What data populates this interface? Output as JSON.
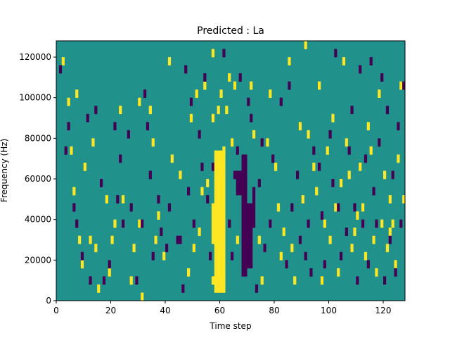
{
  "chart_data": {
    "type": "heatmap",
    "title": "Predicted : La",
    "xlabel": "Time step",
    "ylabel": "Frequency (Hz)",
    "xlim": [
      0,
      128
    ],
    "ylim": [
      0,
      128000
    ],
    "x_ticks": [
      0,
      20,
      40,
      60,
      80,
      100,
      120
    ],
    "y_ticks": [
      0,
      20000,
      40000,
      60000,
      80000,
      100000,
      120000
    ],
    "grid": false,
    "colormap": "viridis",
    "colors": {
      "background": "#21918c",
      "high": "#fde725",
      "low": "#440154"
    },
    "cell_width_steps": 1,
    "cell_height_hz": 4000,
    "regions": [
      {
        "level": "high",
        "x": [
          58,
          62
        ],
        "y": [
          4000,
          74000
        ]
      },
      {
        "level": "high",
        "x": [
          57,
          58
        ],
        "y": [
          8000,
          12000
        ]
      },
      {
        "level": "high",
        "x": [
          57,
          58
        ],
        "y": [
          28000,
          48000
        ]
      },
      {
        "level": "low",
        "x": [
          68,
          70
        ],
        "y": [
          12000,
          72000
        ]
      },
      {
        "level": "low",
        "x": [
          70,
          72
        ],
        "y": [
          16000,
          48000
        ]
      },
      {
        "level": "low",
        "x": [
          72,
          73
        ],
        "y": [
          36000,
          56000
        ]
      },
      {
        "level": "low",
        "x": [
          66,
          68
        ],
        "y": [
          52000,
          64000
        ]
      }
    ],
    "high_cells": [
      [
        2,
        116000
      ],
      [
        4,
        96000
      ],
      [
        5,
        72000
      ],
      [
        6,
        52000
      ],
      [
        7,
        100000
      ],
      [
        8,
        28000
      ],
      [
        9,
        16000
      ],
      [
        10,
        64000
      ],
      [
        12,
        28000
      ],
      [
        13,
        76000
      ],
      [
        14,
        24000
      ],
      [
        15,
        4000
      ],
      [
        18,
        48000
      ],
      [
        19,
        12000
      ],
      [
        20,
        28000
      ],
      [
        21,
        36000
      ],
      [
        23,
        92000
      ],
      [
        24,
        48000
      ],
      [
        27,
        8000
      ],
      [
        28,
        24000
      ],
      [
        30,
        36000
      ],
      [
        31,
        0
      ],
      [
        34,
        92000
      ],
      [
        36,
        28000
      ],
      [
        37,
        40000
      ],
      [
        39,
        20000
      ],
      [
        42,
        68000
      ],
      [
        45,
        60000
      ],
      [
        48,
        12000
      ],
      [
        49,
        88000
      ],
      [
        50,
        24000
      ],
      [
        51,
        100000
      ],
      [
        52,
        32000
      ],
      [
        53,
        52000
      ],
      [
        54,
        104000
      ],
      [
        55,
        56000
      ],
      [
        57,
        120000
      ],
      [
        57,
        88000
      ],
      [
        59,
        92000
      ],
      [
        60,
        100000
      ],
      [
        61,
        72000
      ],
      [
        62,
        92000
      ],
      [
        63,
        108000
      ],
      [
        64,
        76000
      ],
      [
        65,
        104000
      ],
      [
        66,
        28000
      ],
      [
        67,
        52000
      ],
      [
        68,
        64000
      ],
      [
        70,
        40000
      ],
      [
        71,
        104000
      ],
      [
        72,
        80000
      ],
      [
        74,
        28000
      ],
      [
        75,
        8000
      ],
      [
        77,
        76000
      ],
      [
        78,
        100000
      ],
      [
        80,
        64000
      ],
      [
        81,
        44000
      ],
      [
        82,
        20000
      ],
      [
        83,
        32000
      ],
      [
        85,
        116000
      ],
      [
        86,
        24000
      ],
      [
        87,
        8000
      ],
      [
        89,
        84000
      ],
      [
        90,
        48000
      ],
      [
        91,
        124000
      ],
      [
        92,
        80000
      ],
      [
        94,
        64000
      ],
      [
        95,
        52000
      ],
      [
        96,
        104000
      ],
      [
        97,
        8000
      ],
      [
        98,
        36000
      ],
      [
        99,
        72000
      ],
      [
        100,
        28000
      ],
      [
        101,
        88000
      ],
      [
        102,
        44000
      ],
      [
        103,
        12000
      ],
      [
        104,
        56000
      ],
      [
        105,
        116000
      ],
      [
        106,
        76000
      ],
      [
        107,
        60000
      ],
      [
        108,
        24000
      ],
      [
        109,
        32000
      ],
      [
        110,
        40000
      ],
      [
        111,
        64000
      ],
      [
        112,
        44000
      ],
      [
        113,
        20000
      ],
      [
        114,
        84000
      ],
      [
        115,
        72000
      ],
      [
        116,
        28000
      ],
      [
        117,
        12000
      ],
      [
        118,
        100000
      ],
      [
        119,
        36000
      ],
      [
        120,
        60000
      ],
      [
        121,
        24000
      ],
      [
        122,
        48000
      ],
      [
        124,
        16000
      ],
      [
        125,
        68000
      ],
      [
        126,
        104000
      ],
      [
        127,
        48000
      ],
      [
        122,
        32000
      ],
      [
        123,
        36000
      ],
      [
        30,
        96000
      ],
      [
        35,
        76000
      ],
      [
        41,
        116000
      ]
    ],
    "low_cells": [
      [
        1,
        112000
      ],
      [
        3,
        72000
      ],
      [
        4,
        84000
      ],
      [
        6,
        44000
      ],
      [
        7,
        36000
      ],
      [
        9,
        20000
      ],
      [
        11,
        88000
      ],
      [
        12,
        8000
      ],
      [
        14,
        92000
      ],
      [
        16,
        56000
      ],
      [
        17,
        8000
      ],
      [
        19,
        16000
      ],
      [
        21,
        84000
      ],
      [
        22,
        48000
      ],
      [
        23,
        68000
      ],
      [
        24,
        36000
      ],
      [
        26,
        80000
      ],
      [
        27,
        44000
      ],
      [
        29,
        8000
      ],
      [
        31,
        36000
      ],
      [
        32,
        100000
      ],
      [
        33,
        84000
      ],
      [
        34,
        60000
      ],
      [
        35,
        20000
      ],
      [
        37,
        48000
      ],
      [
        38,
        32000
      ],
      [
        40,
        24000
      ],
      [
        41,
        44000
      ],
      [
        44,
        28000
      ],
      [
        46,
        4000
      ],
      [
        48,
        52000
      ],
      [
        49,
        96000
      ],
      [
        50,
        36000
      ],
      [
        52,
        80000
      ],
      [
        53,
        64000
      ],
      [
        54,
        108000
      ],
      [
        55,
        48000
      ],
      [
        56,
        20000
      ],
      [
        63,
        36000
      ],
      [
        64,
        20000
      ],
      [
        65,
        60000
      ],
      [
        66,
        72000
      ],
      [
        67,
        108000
      ],
      [
        70,
        96000
      ],
      [
        71,
        88000
      ],
      [
        73,
        4000
      ],
      [
        74,
        56000
      ],
      [
        75,
        76000
      ],
      [
        76,
        24000
      ],
      [
        78,
        36000
      ],
      [
        79,
        68000
      ],
      [
        82,
        96000
      ],
      [
        84,
        16000
      ],
      [
        86,
        44000
      ],
      [
        88,
        60000
      ],
      [
        89,
        28000
      ],
      [
        91,
        20000
      ],
      [
        92,
        36000
      ],
      [
        93,
        12000
      ],
      [
        94,
        72000
      ],
      [
        96,
        64000
      ],
      [
        97,
        40000
      ],
      [
        98,
        16000
      ],
      [
        100,
        80000
      ],
      [
        101,
        56000
      ],
      [
        103,
        44000
      ],
      [
        104,
        20000
      ],
      [
        106,
        32000
      ],
      [
        107,
        72000
      ],
      [
        108,
        92000
      ],
      [
        109,
        44000
      ],
      [
        110,
        8000
      ],
      [
        112,
        36000
      ],
      [
        113,
        68000
      ],
      [
        114,
        16000
      ],
      [
        116,
        52000
      ],
      [
        117,
        36000
      ],
      [
        118,
        76000
      ],
      [
        120,
        8000
      ],
      [
        121,
        92000
      ],
      [
        122,
        28000
      ],
      [
        123,
        60000
      ],
      [
        124,
        12000
      ],
      [
        125,
        84000
      ],
      [
        126,
        36000
      ],
      [
        127,
        104000
      ],
      [
        111,
        112000
      ],
      [
        115,
        116000
      ],
      [
        119,
        108000
      ],
      [
        102,
        120000
      ],
      [
        85,
        104000
      ],
      [
        45,
        28000
      ],
      [
        57,
        64000
      ],
      [
        61,
        120000
      ],
      [
        47,
        112000
      ]
    ]
  }
}
